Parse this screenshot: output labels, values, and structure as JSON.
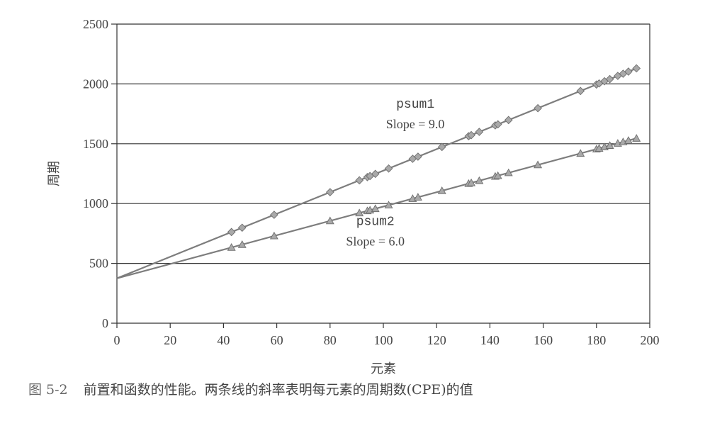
{
  "chart_data": {
    "type": "scatter",
    "title": "",
    "xlabel": "元素",
    "ylabel": "周期",
    "xlim": [
      0,
      200
    ],
    "ylim": [
      0,
      2500
    ],
    "xticks": [
      "0",
      "20",
      "40",
      "60",
      "80",
      "100",
      "120",
      "140",
      "160",
      "180",
      "200"
    ],
    "yticks": [
      "0",
      "500",
      "1000",
      "1500",
      "2000",
      "2500"
    ],
    "grid": "horizontal",
    "series": [
      {
        "name": "psum1",
        "marker": "diamond",
        "color": "#8a8a8a",
        "line": {
          "intercept": 375,
          "slope": 9.0
        },
        "x": [
          43,
          47,
          59,
          80,
          91,
          94,
          95,
          97,
          102,
          111,
          113,
          122,
          132,
          133,
          136,
          142,
          143,
          147,
          158,
          174,
          180,
          181,
          183,
          185,
          188,
          190,
          192,
          195
        ],
        "y": [
          762,
          798,
          906,
          1095,
          1194,
          1221,
          1230,
          1248,
          1293,
          1374,
          1392,
          1473,
          1563,
          1572,
          1599,
          1653,
          1662,
          1698,
          1797,
          1941,
          1995,
          2004,
          2022,
          2040,
          2067,
          2085,
          2103,
          2130
        ]
      },
      {
        "name": "psum2",
        "marker": "triangle",
        "color": "#8a8a8a",
        "line": {
          "intercept": 375,
          "slope": 6.0
        },
        "x": [
          43,
          47,
          59,
          80,
          91,
          94,
          95,
          97,
          102,
          111,
          113,
          122,
          132,
          133,
          136,
          142,
          143,
          147,
          158,
          174,
          180,
          181,
          183,
          185,
          188,
          190,
          192,
          195
        ],
        "y": [
          633,
          657,
          729,
          855,
          921,
          939,
          945,
          957,
          987,
          1041,
          1053,
          1107,
          1167,
          1173,
          1191,
          1227,
          1233,
          1257,
          1323,
          1419,
          1455,
          1461,
          1473,
          1485,
          1503,
          1515,
          1527,
          1545
        ]
      }
    ],
    "annotations": [
      {
        "series": "psum1",
        "name": "psum1",
        "slope_text": "Slope = 9.0",
        "at": [
          112,
          1800
        ]
      },
      {
        "series": "psum2",
        "name": "psum2",
        "slope_text": "Slope = 6.0",
        "at": [
          97,
          820
        ]
      }
    ]
  },
  "caption": {
    "number": "图 5-2",
    "text": "前置和函数的性能。两条线的斜率表明每元素的周期数(CPE)的值"
  }
}
